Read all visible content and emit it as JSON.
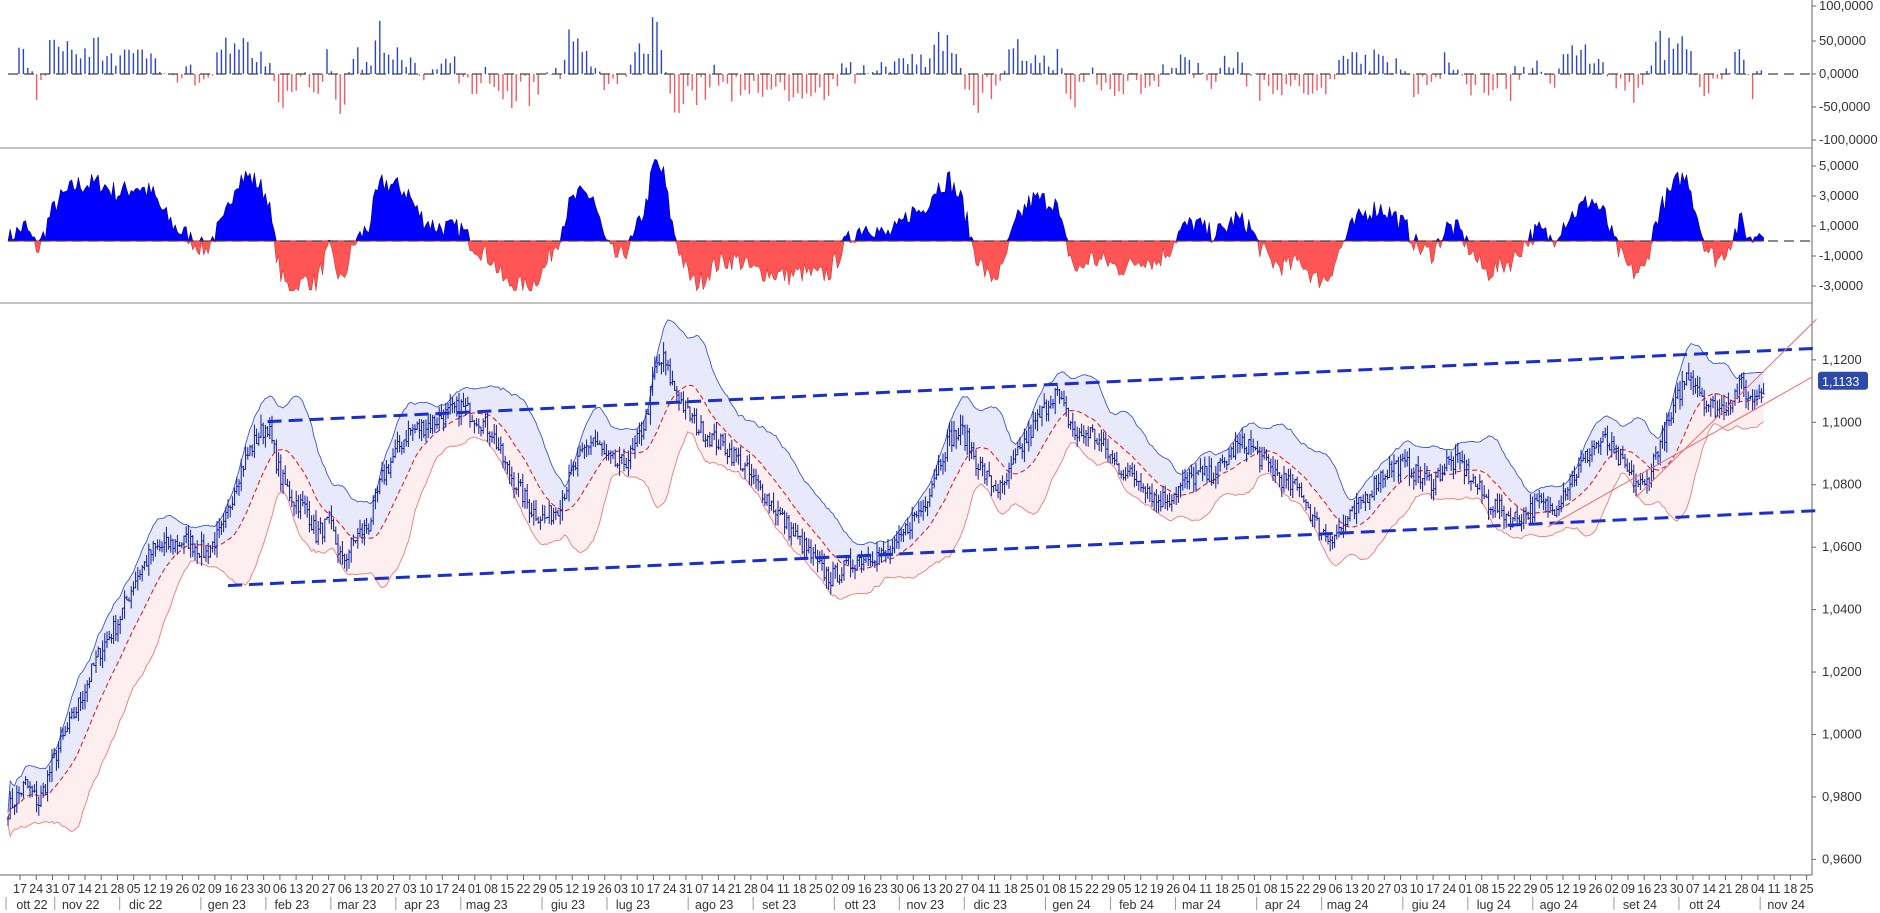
{
  "colors": {
    "up_bar": "#2a44c8",
    "down_bar": "#f05a60",
    "area_pos": "#0000ff",
    "area_neg": "#ff5555",
    "candle": "#0b1c9c",
    "channel": "#1a2fd0",
    "trend": "#f06a6a",
    "band_upper": "#3a55d6",
    "band_lower": "#f07a7a",
    "ma": "#e02020",
    "badge": "#2c4aa8"
  },
  "chart_data": [
    {
      "type": "bar",
      "role": "oscillator-histogram",
      "yticks": [
        "100,0000",
        "50,0000",
        "0,0000",
        "-50,0000",
        "-100,0000"
      ],
      "ylim": [
        -110,
        110
      ],
      "zero_line": "dashed"
    },
    {
      "type": "area",
      "role": "oscillator-area",
      "yticks": [
        "5,0000",
        "3,0000",
        "1,0000",
        "-1,0000",
        "-3,0000"
      ],
      "ylim": [
        -4,
        6
      ],
      "zero_line": "dashed"
    },
    {
      "type": "line",
      "role": "price-candles",
      "yticks": [
        "1,1200",
        "1,1000",
        "1,0800",
        "1,0600",
        "1,0400",
        "1,0200",
        "1,0000",
        "0,9800",
        "0,9600"
      ],
      "ylim": [
        0.955,
        1.135
      ],
      "last_value": 1.1133,
      "last_value_label": "1,1133",
      "overlays": [
        "bollinger-bands",
        "moving-average",
        "channel-lines-dashed",
        "trend-lines"
      ],
      "price_path": [
        [
          0,
          0.976
        ],
        [
          8,
          0.984
        ],
        [
          14,
          0.978
        ],
        [
          22,
          0.994
        ],
        [
          28,
          1.003
        ],
        [
          34,
          1.013
        ],
        [
          42,
          1.027
        ],
        [
          50,
          1.036
        ],
        [
          58,
          1.05
        ],
        [
          66,
          1.059
        ],
        [
          74,
          1.061
        ],
        [
          82,
          1.062
        ],
        [
          90,
          1.058
        ],
        [
          98,
          1.066
        ],
        [
          104,
          1.082
        ],
        [
          110,
          1.091
        ],
        [
          114,
          1.096
        ],
        [
          118,
          1.099
        ],
        [
          124,
          1.082
        ],
        [
          130,
          1.075
        ],
        [
          136,
          1.072
        ],
        [
          140,
          1.064
        ],
        [
          146,
          1.068
        ],
        [
          152,
          1.055
        ],
        [
          158,
          1.063
        ],
        [
          164,
          1.067
        ],
        [
          170,
          1.082
        ],
        [
          176,
          1.09
        ],
        [
          182,
          1.097
        ],
        [
          190,
          1.099
        ],
        [
          198,
          1.102
        ],
        [
          206,
          1.105
        ],
        [
          214,
          1.101
        ],
        [
          220,
          1.097
        ],
        [
          226,
          1.086
        ],
        [
          232,
          1.079
        ],
        [
          238,
          1.072
        ],
        [
          244,
          1.069
        ],
        [
          250,
          1.073
        ],
        [
          256,
          1.083
        ],
        [
          262,
          1.091
        ],
        [
          266,
          1.095
        ],
        [
          272,
          1.088
        ],
        [
          278,
          1.086
        ],
        [
          284,
          1.09
        ],
        [
          290,
          1.101
        ],
        [
          294,
          1.117
        ],
        [
          298,
          1.12
        ],
        [
          302,
          1.112
        ],
        [
          308,
          1.104
        ],
        [
          314,
          1.098
        ],
        [
          320,
          1.095
        ],
        [
          326,
          1.092
        ],
        [
          332,
          1.088
        ],
        [
          338,
          1.082
        ],
        [
          344,
          1.077
        ],
        [
          350,
          1.071
        ],
        [
          356,
          1.065
        ],
        [
          362,
          1.06
        ],
        [
          368,
          1.054
        ],
        [
          374,
          1.05
        ],
        [
          380,
          1.053
        ],
        [
          386,
          1.056
        ],
        [
          392,
          1.058
        ],
        [
          398,
          1.057
        ],
        [
          404,
          1.06
        ],
        [
          410,
          1.068
        ],
        [
          416,
          1.073
        ],
        [
          422,
          1.085
        ],
        [
          428,
          1.095
        ],
        [
          434,
          1.097
        ],
        [
          440,
          1.088
        ],
        [
          446,
          1.081
        ],
        [
          452,
          1.078
        ],
        [
          458,
          1.088
        ],
        [
          464,
          1.096
        ],
        [
          470,
          1.103
        ],
        [
          476,
          1.11
        ],
        [
          480,
          1.104
        ],
        [
          486,
          1.095
        ],
        [
          492,
          1.097
        ],
        [
          498,
          1.092
        ],
        [
          504,
          1.086
        ],
        [
          510,
          1.083
        ],
        [
          516,
          1.081
        ],
        [
          522,
          1.075
        ],
        [
          528,
          1.076
        ],
        [
          534,
          1.08
        ],
        [
          540,
          1.083
        ],
        [
          546,
          1.083
        ],
        [
          552,
          1.086
        ],
        [
          558,
          1.092
        ],
        [
          564,
          1.093
        ],
        [
          570,
          1.088
        ],
        [
          576,
          1.084
        ],
        [
          582,
          1.08
        ],
        [
          588,
          1.078
        ],
        [
          594,
          1.068
        ],
        [
          600,
          1.063
        ],
        [
          606,
          1.066
        ],
        [
          612,
          1.071
        ],
        [
          618,
          1.077
        ],
        [
          624,
          1.083
        ],
        [
          630,
          1.086
        ],
        [
          636,
          1.086
        ],
        [
          642,
          1.082
        ],
        [
          648,
          1.081
        ],
        [
          654,
          1.087
        ],
        [
          660,
          1.087
        ],
        [
          666,
          1.081
        ],
        [
          672,
          1.075
        ],
        [
          678,
          1.072
        ],
        [
          684,
          1.069
        ],
        [
          690,
          1.071
        ],
        [
          696,
          1.074
        ],
        [
          702,
          1.072
        ],
        [
          708,
          1.079
        ],
        [
          714,
          1.085
        ],
        [
          720,
          1.092
        ],
        [
          726,
          1.094
        ],
        [
          732,
          1.088
        ],
        [
          738,
          1.082
        ],
        [
          744,
          1.079
        ],
        [
          750,
          1.092
        ],
        [
          756,
          1.101
        ],
        [
          760,
          1.11
        ],
        [
          764,
          1.116
        ],
        [
          768,
          1.112
        ],
        [
          772,
          1.106
        ],
        [
          778,
          1.104
        ],
        [
          784,
          1.108
        ],
        [
          788,
          1.112
        ],
        [
          792,
          1.107
        ],
        [
          798,
          1.112
        ]
      ],
      "x_span": [
        0,
        820
      ]
    }
  ],
  "xaxis": {
    "day_ticks": [
      "17",
      "24",
      "31",
      "07",
      "14",
      "21",
      "28",
      "05",
      "12",
      "19",
      "26",
      "02",
      "09",
      "16",
      "23",
      "30",
      "06",
      "13",
      "20",
      "27",
      "06",
      "13",
      "20",
      "27",
      "03",
      "10",
      "17",
      "24",
      "01",
      "08",
      "15",
      "22",
      "29",
      "05",
      "12",
      "19",
      "26",
      "03",
      "10",
      "17",
      "24",
      "31",
      "07",
      "14",
      "21",
      "28",
      "04",
      "11",
      "18",
      "25",
      "02",
      "09",
      "16",
      "23",
      "30",
      "06",
      "13",
      "20",
      "27",
      "04",
      "11",
      "18",
      "25",
      "01",
      "08",
      "15",
      "22",
      "29",
      "05",
      "12",
      "19",
      "26",
      "04",
      "11",
      "18",
      "25",
      "01",
      "08",
      "15",
      "22",
      "29",
      "06",
      "13",
      "20",
      "27",
      "03",
      "10",
      "17",
      "24",
      "01",
      "08",
      "15",
      "22",
      "29",
      "05",
      "12",
      "19",
      "26",
      "02",
      "09",
      "16",
      "23",
      "30",
      "07",
      "14",
      "21",
      "28",
      "04",
      "11",
      "18",
      "25"
    ],
    "months": [
      "ott 22",
      "nov 22",
      "dic 22",
      "gen 23",
      "feb 23",
      "mar 23",
      "apr 23",
      "mag 23",
      "giu 23",
      "lug 23",
      "ago 23",
      "set 23",
      "ott 23",
      "nov 23",
      "dic 23",
      "gen 24",
      "feb 24",
      "mar 24",
      "apr 24",
      "mag 24",
      "giu 24",
      "lug 24",
      "ago 24",
      "set 24",
      "ott 24",
      "nov 24"
    ]
  }
}
